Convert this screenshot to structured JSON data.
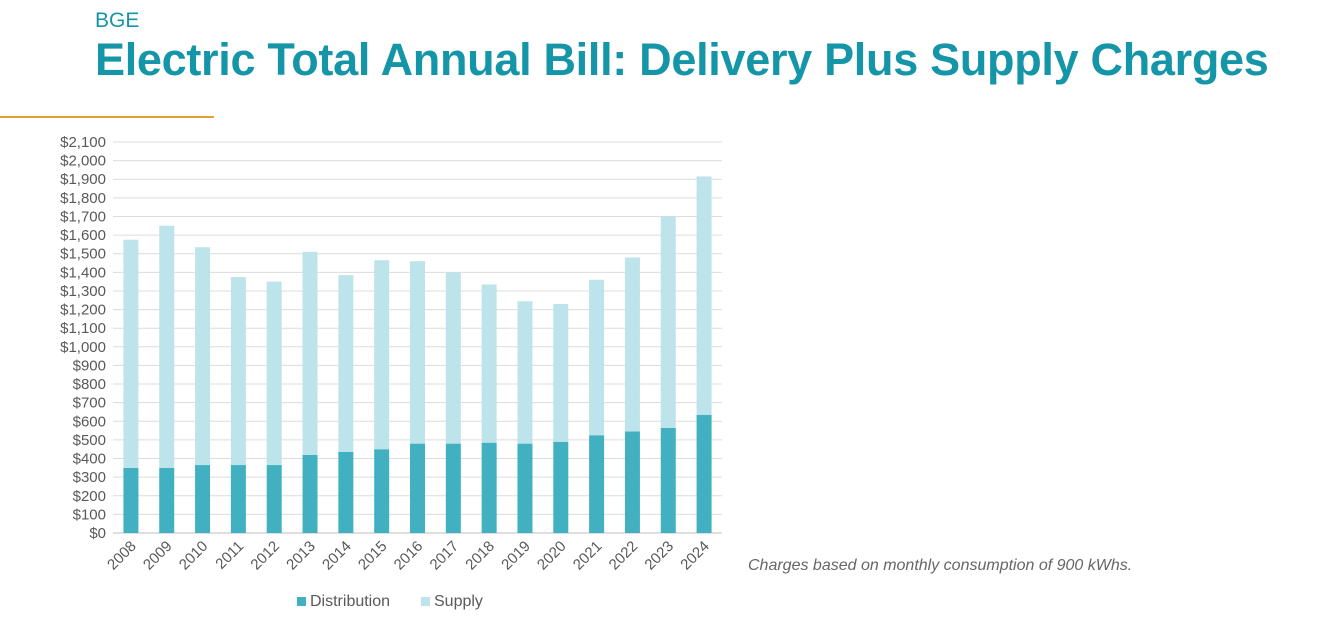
{
  "header": {
    "org": "BGE",
    "title": "Electric Total Annual Bill: Delivery Plus Supply Charges"
  },
  "footnote": "Charges based on monthly consumption of 900 kWhs.",
  "colors": {
    "title": "#1596a8",
    "rule": "#e3a22f",
    "distribution": "#41b0c0",
    "supply": "#bde4ea"
  },
  "chart_data": {
    "type": "bar",
    "stacked": true,
    "categories": [
      "2008",
      "2009",
      "2010",
      "2011",
      "2012",
      "2013",
      "2014",
      "2015",
      "2016",
      "2017",
      "2018",
      "2019",
      "2020",
      "2021",
      "2022",
      "2023",
      "2024"
    ],
    "series": [
      {
        "name": "Distribution",
        "values": [
          350,
          350,
          365,
          365,
          365,
          420,
          435,
          450,
          480,
          480,
          485,
          480,
          490,
          525,
          545,
          565,
          635
        ]
      },
      {
        "name": "Supply",
        "values": [
          1225,
          1300,
          1170,
          1010,
          985,
          1090,
          950,
          1015,
          980,
          920,
          850,
          765,
          740,
          835,
          935,
          1135,
          1280
        ]
      }
    ],
    "ylim": [
      0,
      2100
    ],
    "yticks": [
      "$0",
      "$100",
      "$200",
      "$300",
      "$400",
      "$500",
      "$600",
      "$700",
      "$800",
      "$900",
      "$1,000",
      "$1,100",
      "$1,200",
      "$1,300",
      "$1,400",
      "$1,500",
      "$1,600",
      "$1,700",
      "$1,800",
      "$1,900",
      "$2,000",
      "$2,100"
    ],
    "grid": true,
    "legend": "bottom"
  }
}
